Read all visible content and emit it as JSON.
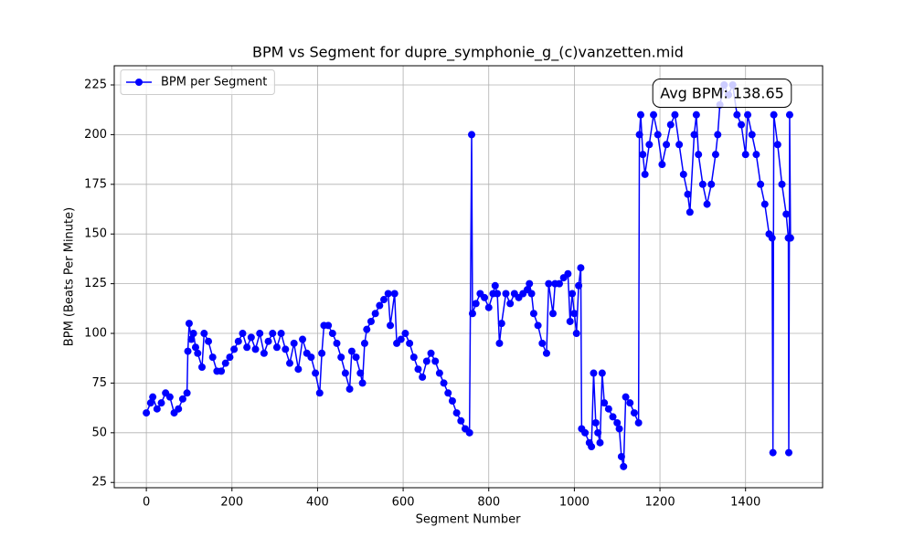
{
  "chart_data": {
    "type": "line",
    "title": "BPM vs Segment for dupre_symphonie_g_(c)vanzetten.mid",
    "x_label": "Segment Number",
    "y_label": "BPM (Beats Per Minute)",
    "annotation": "Avg BPM: 138.65",
    "legend": "upper left",
    "grid": true,
    "xlim": [
      -75,
      1580
    ],
    "ylim": [
      22.35,
      234.65
    ],
    "xticks": [
      0,
      200,
      400,
      600,
      800,
      1000,
      1200,
      1400
    ],
    "yticks": [
      25,
      50,
      75,
      100,
      125,
      150,
      175,
      200,
      225
    ],
    "x": [
      0,
      10,
      15,
      25,
      35,
      45,
      55,
      65,
      75,
      85,
      95,
      97,
      100,
      105,
      110,
      115,
      120,
      130,
      135,
      145,
      155,
      165,
      175,
      185,
      195,
      205,
      215,
      225,
      235,
      245,
      255,
      265,
      275,
      285,
      295,
      305,
      315,
      325,
      335,
      345,
      355,
      365,
      375,
      385,
      395,
      405,
      410,
      415,
      425,
      435,
      445,
      455,
      465,
      475,
      480,
      490,
      500,
      505,
      510,
      515,
      525,
      535,
      545,
      555,
      565,
      570,
      580,
      585,
      595,
      605,
      615,
      625,
      635,
      645,
      655,
      665,
      675,
      685,
      695,
      705,
      715,
      725,
      735,
      745,
      755,
      760,
      762,
      770,
      780,
      790,
      800,
      810,
      815,
      820,
      825,
      830,
      840,
      850,
      860,
      870,
      880,
      890,
      895,
      900,
      905,
      915,
      925,
      935,
      940,
      950,
      955,
      965,
      975,
      985,
      990,
      995,
      1000,
      1005,
      1010,
      1015,
      1017,
      1025,
      1035,
      1040,
      1045,
      1050,
      1055,
      1060,
      1065,
      1070,
      1080,
      1090,
      1100,
      1105,
      1110,
      1115,
      1120,
      1130,
      1140,
      1150,
      1152,
      1155,
      1160,
      1165,
      1175,
      1185,
      1195,
      1205,
      1215,
      1225,
      1235,
      1245,
      1255,
      1265,
      1270,
      1280,
      1285,
      1290,
      1300,
      1310,
      1320,
      1330,
      1335,
      1340,
      1350,
      1360,
      1370,
      1380,
      1390,
      1400,
      1405,
      1415,
      1425,
      1435,
      1445,
      1455,
      1462,
      1464,
      1466,
      1475,
      1485,
      1495,
      1500,
      1501,
      1503,
      1505
    ],
    "series": [
      {
        "name": "BPM per Segment",
        "color": "#0000ff",
        "values": [
          60,
          65,
          68,
          62,
          65,
          70,
          68,
          60,
          62,
          67,
          70,
          91,
          105,
          97,
          100,
          93,
          90,
          83,
          100,
          96,
          88,
          81,
          81,
          85,
          88,
          92,
          96,
          100,
          93,
          98,
          92,
          100,
          90,
          96,
          100,
          93,
          100,
          92,
          85,
          95,
          82,
          97,
          90,
          88,
          80,
          70,
          90,
          104,
          104,
          100,
          95,
          88,
          80,
          72,
          91,
          88,
          80,
          75,
          95,
          102,
          106,
          110,
          114,
          117,
          120,
          104,
          120,
          95,
          97,
          100,
          95,
          88,
          82,
          78,
          86,
          90,
          86,
          80,
          75,
          70,
          66,
          60,
          56,
          52,
          50,
          200,
          110,
          115,
          120,
          118,
          113,
          120,
          124,
          120,
          95,
          105,
          120,
          115,
          120,
          118,
          120,
          122,
          125,
          120,
          110,
          104,
          95,
          90,
          125,
          110,
          125,
          125,
          128,
          130,
          106,
          120,
          110,
          100,
          124,
          133,
          52,
          50,
          45,
          43,
          80,
          55,
          50,
          45,
          80,
          65,
          62,
          58,
          55,
          52,
          38,
          33,
          68,
          65,
          60,
          55,
          200,
          210,
          190,
          180,
          195,
          210,
          200,
          185,
          195,
          205,
          210,
          195,
          180,
          170,
          161,
          200,
          210,
          190,
          175,
          165,
          175,
          190,
          200,
          215,
          225,
          220,
          225,
          210,
          205,
          190,
          210,
          200,
          190,
          175,
          165,
          150,
          148,
          40,
          210,
          195,
          175,
          160,
          148,
          40,
          210,
          148
        ]
      }
    ]
  }
}
